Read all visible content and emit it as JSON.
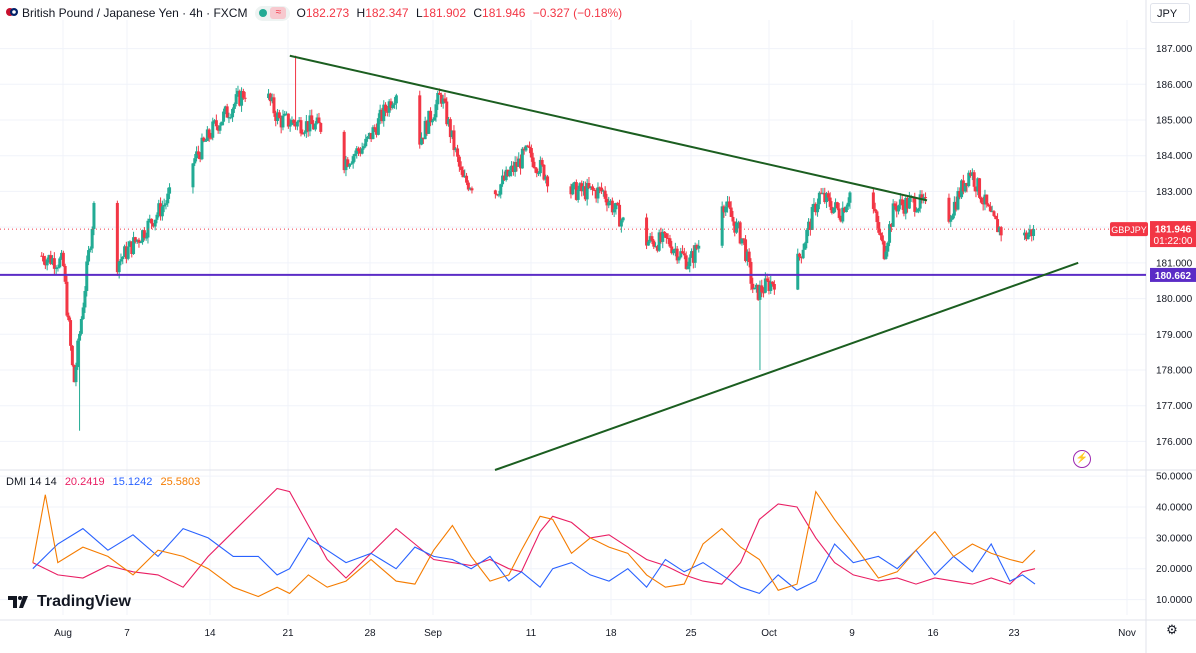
{
  "header": {
    "symbol_title": "British Pound / Japanese Yen · 4h · FXCM",
    "ohlc": [
      {
        "k": "O",
        "v": "182.273"
      },
      {
        "k": "H",
        "v": "182.347"
      },
      {
        "k": "L",
        "v": "181.902"
      },
      {
        "k": "C",
        "v": "181.946"
      },
      {
        "k": "",
        "v": "−0.327 (−0.18%)"
      }
    ]
  },
  "currency_button": "JPY",
  "price_badge": {
    "ticker": "GBPJPY",
    "price": "181.946",
    "countdown": "01:22:00"
  },
  "level_badge": "180.662",
  "indicator": {
    "name": "DMI 14 14",
    "adx": "20.2419",
    "minus_di": "15.1242",
    "plus_di": "25.5803"
  },
  "branding": "TradingView",
  "colors": {
    "up": "#22ab94",
    "down": "#f23645",
    "trend": "#1b5e20",
    "level": "#5b2cc6",
    "adx": "#e91e63",
    "minus_di": "#2962ff",
    "plus_di": "#f57c00",
    "grid": "#f0f3fa"
  },
  "chart_data": [
    {
      "type": "candlestick",
      "title": "British Pound / Japanese Yen · 4h · FXCM",
      "y_axis_ticks": [
        187.0,
        186.0,
        185.0,
        184.0,
        183.0,
        182.0,
        181.0,
        180.0,
        179.0,
        178.0,
        177.0,
        176.0
      ],
      "y_axis_labels": [
        "187.000",
        "186.000",
        "185.000",
        "184.000",
        "183.000",
        "182.000",
        "181.000",
        "180.000",
        "179.000",
        "178.000",
        "177.000",
        "176.000"
      ],
      "ylim": [
        175.2,
        187.8
      ],
      "x_axis_labels": [
        "Aug",
        "7",
        "14",
        "21",
        "28",
        "Sep",
        "11",
        "18",
        "25",
        "Oct",
        "9",
        "16",
        "23",
        "Nov"
      ],
      "key_points": [
        {
          "date": "Jul 30",
          "close": 181.2
        },
        {
          "date": "Aug 1",
          "close": 181.0
        },
        {
          "date": "Aug 2",
          "close": 177.6
        },
        {
          "date": "Aug 2",
          "low": 176.3
        },
        {
          "date": "Aug 4",
          "close": 182.9
        },
        {
          "date": "Aug 6",
          "close": 181.0
        },
        {
          "date": "Aug 8",
          "close": 181.7
        },
        {
          "date": "Aug 12",
          "close": 183.3
        },
        {
          "date": "Aug 15",
          "close": 184.8
        },
        {
          "date": "Aug 19",
          "close": 186.2
        },
        {
          "date": "Aug 21",
          "close": 185.0
        },
        {
          "date": "Aug 22",
          "high": 186.8
        },
        {
          "date": "Aug 25",
          "close": 184.8
        },
        {
          "date": "Aug 26",
          "close": 183.6
        },
        {
          "date": "Aug 29",
          "close": 184.3
        },
        {
          "date": "Sep 1",
          "close": 185.9
        },
        {
          "date": "Sep 2",
          "close": 183.8
        },
        {
          "date": "Sep 5",
          "close": 185.7
        },
        {
          "date": "Sep 7",
          "close": 183.3
        },
        {
          "date": "Sep 10",
          "close": 183.0
        },
        {
          "date": "Sep 13",
          "close": 184.1
        },
        {
          "date": "Sep 16",
          "close": 183.0
        },
        {
          "date": "Sep 20",
          "close": 183.0
        },
        {
          "date": "Sep 23",
          "close": 181.6
        },
        {
          "date": "Sep 23",
          "low": 180.7
        },
        {
          "date": "Sep 26",
          "close": 181.6
        },
        {
          "date": "Sep 28",
          "close": 181.0
        },
        {
          "date": "Oct 1",
          "close": 182.8
        },
        {
          "date": "Oct 3",
          "close": 181.6
        },
        {
          "date": "Oct 4",
          "close": 180.1
        },
        {
          "date": "Oct 4",
          "low": 178.0
        },
        {
          "date": "Oct 8",
          "close": 181.0
        },
        {
          "date": "Oct 10",
          "close": 182.9
        },
        {
          "date": "Oct 12",
          "close": 182.4
        },
        {
          "date": "Oct 14",
          "close": 183.7
        },
        {
          "date": "Oct 16",
          "close": 181.3
        },
        {
          "date": "Oct 17",
          "close": 182.6
        },
        {
          "date": "Oct 19",
          "close": 182.7
        },
        {
          "date": "Oct 22",
          "close": 182.3
        },
        {
          "date": "Oct 24",
          "close": 183.6
        },
        {
          "date": "Oct 26",
          "close": 182.2
        },
        {
          "date": "Oct 28",
          "close": 181.5
        },
        {
          "date": "Oct 30",
          "close": 181.95
        }
      ],
      "horizontal_level": 180.662,
      "last_price": 181.946,
      "trendlines": [
        {
          "from": {
            "date": "Aug 22",
            "price": 186.8
          },
          "to": {
            "date": "Oct 20",
            "price": 182.75
          }
        },
        {
          "from": {
            "date": "Sep 10",
            "price": 175.2
          },
          "to": {
            "date": "Nov 3",
            "price": 181.0
          }
        }
      ]
    },
    {
      "type": "line",
      "title": "DMI 14 14",
      "y_axis_ticks": [
        10,
        20,
        30,
        40,
        50
      ],
      "y_axis_labels": [
        "10.0000",
        "20.0000",
        "30.0000",
        "40.0000",
        "50.0000"
      ],
      "ylim": [
        5.0,
        52.0
      ],
      "series": [
        {
          "name": "20.2419",
          "color": "#e91e63",
          "points": [
            [
              0,
              22
            ],
            [
              4,
              18
            ],
            [
              8,
              17
            ],
            [
              12,
              21
            ],
            [
              16,
              19
            ],
            [
              20,
              18
            ],
            [
              24,
              14
            ],
            [
              28,
              24
            ],
            [
              32,
              32
            ],
            [
              36,
              40
            ],
            [
              39,
              46
            ],
            [
              41,
              45
            ],
            [
              44,
              34
            ],
            [
              47,
              23
            ],
            [
              50,
              17
            ],
            [
              54,
              25
            ],
            [
              58,
              33
            ],
            [
              61,
              28
            ],
            [
              64,
              23
            ],
            [
              67,
              22
            ],
            [
              70,
              21
            ],
            [
              73,
              23
            ],
            [
              76,
              20
            ],
            [
              78,
              19
            ],
            [
              81,
              32
            ],
            [
              83,
              37
            ],
            [
              86,
              35
            ],
            [
              89,
              30
            ],
            [
              92,
              31
            ],
            [
              95,
              27
            ],
            [
              98,
              23
            ],
            [
              101,
              21
            ],
            [
              104,
              18
            ],
            [
              107,
              16
            ],
            [
              110,
              15
            ],
            [
              113,
              22
            ],
            [
              116,
              36
            ],
            [
              119,
              41
            ],
            [
              122,
              40
            ],
            [
              125,
              30
            ],
            [
              128,
              22
            ],
            [
              131,
              18
            ],
            [
              135,
              16
            ],
            [
              138,
              17
            ],
            [
              141,
              15
            ],
            [
              144,
              17
            ],
            [
              147,
              16
            ],
            [
              150,
              15
            ],
            [
              153,
              17
            ],
            [
              156,
              15
            ],
            [
              158,
              19
            ],
            [
              160,
              20
            ]
          ]
        },
        {
          "name": "15.1242",
          "color": "#2962ff",
          "points": [
            [
              0,
              20
            ],
            [
              4,
              28
            ],
            [
              8,
              33
            ],
            [
              12,
              26
            ],
            [
              16,
              31
            ],
            [
              20,
              24
            ],
            [
              24,
              33
            ],
            [
              28,
              30
            ],
            [
              32,
              24
            ],
            [
              36,
              24
            ],
            [
              39,
              18
            ],
            [
              41,
              20
            ],
            [
              44,
              30
            ],
            [
              47,
              26
            ],
            [
              50,
              22
            ],
            [
              54,
              25
            ],
            [
              58,
              20
            ],
            [
              61,
              27
            ],
            [
              64,
              24
            ],
            [
              67,
              23
            ],
            [
              70,
              20
            ],
            [
              73,
              24
            ],
            [
              76,
              16
            ],
            [
              78,
              19
            ],
            [
              81,
              14
            ],
            [
              83,
              20
            ],
            [
              86,
              22
            ],
            [
              89,
              18
            ],
            [
              92,
              16
            ],
            [
              95,
              20
            ],
            [
              98,
              14
            ],
            [
              101,
              23
            ],
            [
              104,
              19
            ],
            [
              107,
              22
            ],
            [
              110,
              18
            ],
            [
              113,
              14
            ],
            [
              116,
              12
            ],
            [
              119,
              18
            ],
            [
              122,
              13
            ],
            [
              125,
              16
            ],
            [
              128,
              28
            ],
            [
              131,
              22
            ],
            [
              135,
              24
            ],
            [
              138,
              20
            ],
            [
              141,
              26
            ],
            [
              144,
              18
            ],
            [
              147,
              24
            ],
            [
              150,
              19
            ],
            [
              153,
              28
            ],
            [
              156,
              16
            ],
            [
              158,
              18
            ],
            [
              160,
              15
            ]
          ]
        },
        {
          "name": "25.5803",
          "color": "#f57c00",
          "points": [
            [
              0,
              22
            ],
            [
              2,
              44
            ],
            [
              4,
              22
            ],
            [
              8,
              27
            ],
            [
              12,
              24
            ],
            [
              16,
              18
            ],
            [
              20,
              26
            ],
            [
              24,
              24
            ],
            [
              28,
              20
            ],
            [
              32,
              14
            ],
            [
              36,
              11
            ],
            [
              39,
              14
            ],
            [
              41,
              12
            ],
            [
              44,
              18
            ],
            [
              47,
              14
            ],
            [
              50,
              16
            ],
            [
              54,
              23
            ],
            [
              58,
              16
            ],
            [
              61,
              15
            ],
            [
              64,
              26
            ],
            [
              67,
              34
            ],
            [
              70,
              24
            ],
            [
              73,
              16
            ],
            [
              76,
              18
            ],
            [
              78,
              26
            ],
            [
              81,
              37
            ],
            [
              83,
              36
            ],
            [
              86,
              25
            ],
            [
              89,
              30
            ],
            [
              92,
              27
            ],
            [
              95,
              25
            ],
            [
              98,
              18
            ],
            [
              101,
              14
            ],
            [
              104,
              15
            ],
            [
              107,
              28
            ],
            [
              110,
              33
            ],
            [
              113,
              27
            ],
            [
              116,
              23
            ],
            [
              119,
              13
            ],
            [
              122,
              15
            ],
            [
              125,
              45
            ],
            [
              128,
              36
            ],
            [
              131,
              28
            ],
            [
              135,
              17
            ],
            [
              138,
              19
            ],
            [
              141,
              26
            ],
            [
              144,
              32
            ],
            [
              147,
              24
            ],
            [
              150,
              28
            ],
            [
              153,
              25
            ],
            [
              156,
              23
            ],
            [
              158,
              22
            ],
            [
              160,
              26
            ]
          ]
        }
      ]
    }
  ]
}
